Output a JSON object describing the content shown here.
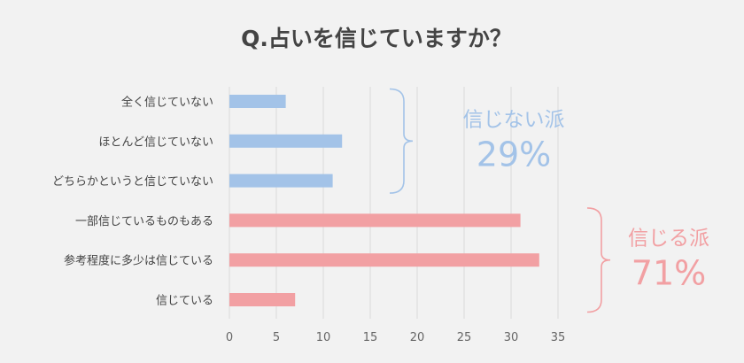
{
  "chart_data": {
    "type": "bar",
    "orientation": "horizontal",
    "title": "Q.占いを信じていますか？",
    "categories": [
      "全く信じていない",
      "ほとんど信じていない",
      "どちらかというと信じていない",
      "一部信じているものもある",
      "参考程度に多少は信じている",
      "信じている"
    ],
    "values": [
      6,
      12,
      11,
      31,
      33,
      7
    ],
    "bar_colors": [
      "#a3c3e8",
      "#a3c3e8",
      "#a3c3e8",
      "#f2a0a3",
      "#f2a0a3",
      "#f2a0a3"
    ],
    "xlim": [
      0,
      35
    ],
    "xticks": [
      "0",
      "5",
      "10",
      "15",
      "20",
      "25",
      "30",
      "35"
    ],
    "grid": "vertical",
    "groups": [
      {
        "label": "信じない派",
        "percent": "29%",
        "color": "#a3c3e8",
        "from": 0,
        "to": 2
      },
      {
        "label": "信じる派",
        "percent": "71%",
        "color": "#f2a0a3",
        "from": 3,
        "to": 5
      }
    ]
  }
}
